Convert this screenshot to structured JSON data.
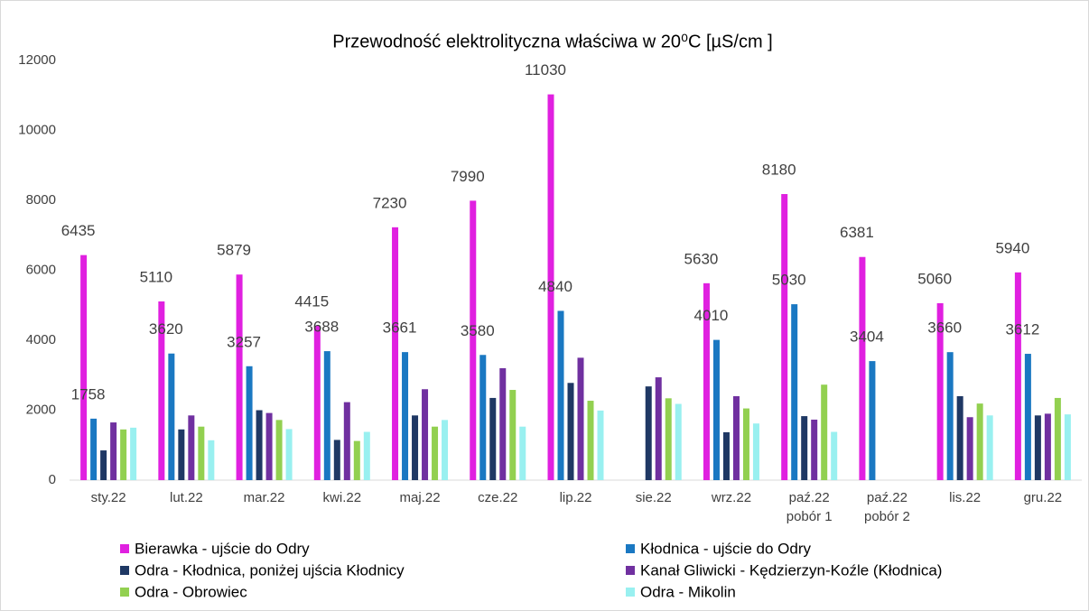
{
  "chart_data": {
    "type": "bar",
    "title": "Przewodność elektrolityczna właściwa w 20⁰C [µS/cm ]",
    "categories": [
      "sty.22",
      "lut.22",
      "mar.22",
      "kwi.22",
      "maj.22",
      "cze.22",
      "lip.22",
      "sie.22",
      "wrz.22",
      "paź.22 pobór 1",
      "paź.22 pobór 2",
      "lis.22",
      "gru.22"
    ],
    "series": [
      {
        "name": "Bierawka - ujście do Odry",
        "color": "#e020e0",
        "labels": true,
        "values": [
          6435,
          5110,
          5879,
          4415,
          7230,
          7990,
          11030,
          null,
          5630,
          8180,
          6381,
          5060,
          5940
        ]
      },
      {
        "name": "Kłodnica - ujście do Odry",
        "color": "#1a78c2",
        "labels": true,
        "values": [
          1758,
          3620,
          3257,
          3688,
          3661,
          3580,
          4840,
          null,
          4010,
          5030,
          3404,
          3660,
          3612
        ]
      },
      {
        "name": "Odra - Kłodnica, poniżej ujścia Kłodnicy",
        "color": "#1f3864",
        "labels": false,
        "values": [
          850,
          1450,
          2000,
          1150,
          1850,
          2350,
          2780,
          2680,
          1370,
          1830,
          null,
          2400,
          1850
        ]
      },
      {
        "name": "Kanał Gliwicki - Kędzierzyn-Koźle (Kłodnica)",
        "color": "#7030a0",
        "labels": false,
        "values": [
          1650,
          1850,
          1920,
          2230,
          2600,
          3200,
          3500,
          2940,
          2400,
          1730,
          null,
          1800,
          1900
        ]
      },
      {
        "name": "Odra - Obrowiec",
        "color": "#92d050",
        "labels": false,
        "values": [
          1450,
          1530,
          1720,
          1120,
          1530,
          2580,
          2270,
          2340,
          2050,
          2730,
          null,
          2190,
          2350
        ]
      },
      {
        "name": "Odra - Mikolin",
        "color": "#99f0f0",
        "labels": false,
        "values": [
          1500,
          1140,
          1460,
          1380,
          1720,
          1530,
          1990,
          2180,
          1620,
          1380,
          null,
          1850,
          1880
        ]
      }
    ],
    "ylim": [
      0,
      12000
    ],
    "yticks": [
      0,
      2000,
      4000,
      6000,
      8000,
      10000,
      12000
    ],
    "grid": false
  }
}
